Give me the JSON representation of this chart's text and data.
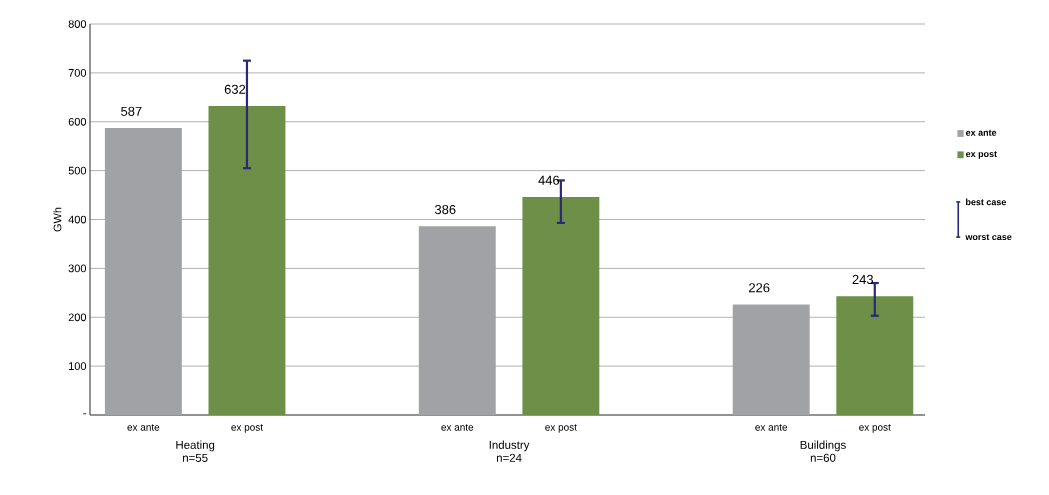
{
  "chart_data": {
    "type": "bar",
    "ylabel": "GWh",
    "categories": [
      "Heating n=55",
      "Industry n=24",
      "Buildings n=60"
    ],
    "series": [
      {
        "name": "ex ante",
        "color": "#a0a2a5",
        "values": [
          587,
          386,
          226
        ]
      },
      {
        "name": "ex post",
        "color": "#6e8f47",
        "values": [
          632,
          446,
          243
        ],
        "errors": [
          [
            505,
            725
          ],
          [
            393,
            480
          ],
          [
            203,
            270
          ]
        ]
      }
    ],
    "ylim": [
      0,
      800
    ],
    "yticks": [
      {
        "value": 0,
        "label": "-"
      },
      100,
      200,
      300,
      400,
      500,
      600,
      700,
      800
    ],
    "grid": "y",
    "legend": "right",
    "data_labels": true,
    "annotations": [
      "best case",
      "worst case"
    ]
  }
}
